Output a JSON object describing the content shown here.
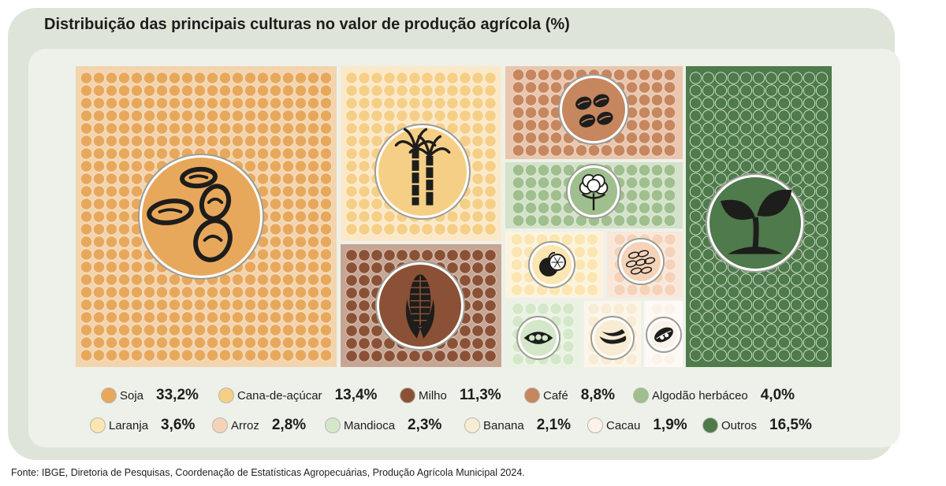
{
  "title": "Distribuição das principais culturas no valor de produção agrícola (%)",
  "source": "Fonte: IBGE, Diretoria de Pesquisas, Coordenação de Estatísticas Agropecuárias, Produção Agrícola Municipal 2024.",
  "chart_data": {
    "type": "treemap",
    "title": "Distribuição das principais culturas no valor de produção agrícola (%)",
    "unit": "%",
    "series": [
      {
        "name": "Soja",
        "value": 33.2,
        "label": "33,2%",
        "color": "#e8a85c",
        "tile_color": "#f2d4ae",
        "icon": "soybean-icon"
      },
      {
        "name": "Cana-de-açúcar",
        "value": 13.4,
        "label": "13,4%",
        "color": "#f6cf87",
        "tile_color": "#fbe8c8",
        "icon": "sugarcane-icon"
      },
      {
        "name": "Milho",
        "value": 11.3,
        "label": "11,3%",
        "color": "#8b5136",
        "tile_color": "#c6a693",
        "icon": "corn-icon"
      },
      {
        "name": "Café",
        "value": 8.8,
        "label": "8,8%",
        "color": "#c6865e",
        "tile_color": "#e9c6ad",
        "icon": "coffee-bean-icon"
      },
      {
        "name": "Algodão herbáceo",
        "value": 4.0,
        "label": "4,0%",
        "color": "#9fbf8e",
        "tile_color": "#d3e2c8",
        "icon": "cotton-icon"
      },
      {
        "name": "Laranja",
        "value": 3.6,
        "label": "3,6%",
        "color": "#fbe6b2",
        "tile_color": "#fdf3dd",
        "icon": "orange-icon"
      },
      {
        "name": "Arroz",
        "value": 2.8,
        "label": "2,8%",
        "color": "#f5d3b9",
        "tile_color": "#f9e7da",
        "icon": "rice-icon"
      },
      {
        "name": "Mandioca",
        "value": 2.3,
        "label": "2,3%",
        "color": "#d5e7c9",
        "tile_color": "#eaf3e3",
        "icon": "cassava-icon"
      },
      {
        "name": "Banana",
        "value": 2.1,
        "label": "2,1%",
        "color": "#f9ecd5",
        "tile_color": "#fcf5ea",
        "icon": "banana-icon"
      },
      {
        "name": "Cacau",
        "value": 1.9,
        "label": "1,9%",
        "color": "#fbf3ea",
        "tile_color": "#fdf9f4",
        "icon": "cacao-icon"
      },
      {
        "name": "Outros",
        "value": 16.5,
        "label": "16,5%",
        "color": "#4e7a4c",
        "tile_color": "#4e7a4c",
        "icon": "sprout-icon"
      }
    ]
  }
}
